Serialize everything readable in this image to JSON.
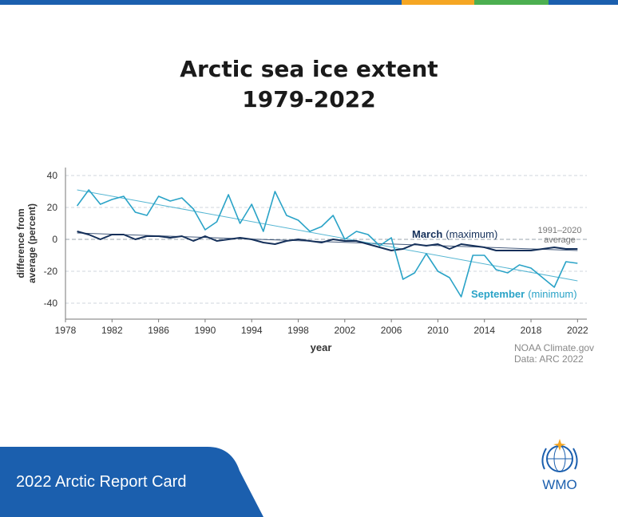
{
  "colors": {
    "top_bar": [
      "#1b5fae",
      "#f5a623",
      "#4caf50",
      "#1b5fae"
    ],
    "september": "#2aa3c7",
    "march": "#15305a",
    "footer": "#1b5fae"
  },
  "title_line1": "Arctic sea ice extent",
  "title_line2": "1979-2022",
  "footer": {
    "label": "2022 Arctic Report Card"
  },
  "logo": {
    "text": "WMO",
    "icon": "wmo-emblem-icon"
  },
  "chart_data": {
    "type": "line",
    "xlabel": "year",
    "ylabel_line1": "difference from",
    "ylabel_line2": "average (percent)",
    "xlim": [
      1978,
      2022.8
    ],
    "ylim": [
      -50,
      45
    ],
    "x_ticks": [
      1978,
      1982,
      1986,
      1990,
      1994,
      1998,
      2002,
      2006,
      2010,
      2014,
      2018,
      2022
    ],
    "y_ticks": [
      40,
      20,
      0,
      -20,
      -40
    ],
    "grid": "horizontal dashed",
    "x": [
      1979,
      1980,
      1981,
      1982,
      1983,
      1984,
      1985,
      1986,
      1987,
      1988,
      1989,
      1990,
      1991,
      1992,
      1993,
      1994,
      1995,
      1996,
      1997,
      1998,
      1999,
      2000,
      2001,
      2002,
      2003,
      2004,
      2005,
      2006,
      2007,
      2008,
      2009,
      2010,
      2011,
      2012,
      2013,
      2014,
      2015,
      2016,
      2017,
      2018,
      2019,
      2020,
      2021,
      2022
    ],
    "series": [
      {
        "name": "March",
        "qualifier": "(maximum)",
        "values": [
          5,
          3,
          0,
          3,
          3,
          0,
          2,
          2,
          1,
          2,
          -1,
          2,
          -1,
          0,
          1,
          0,
          -2,
          -3,
          -1,
          0,
          -1,
          -2,
          0,
          -1,
          -1,
          -3,
          -5,
          -7,
          -6,
          -3,
          -4,
          -3,
          -6,
          -3,
          -4,
          -5,
          -7,
          -7,
          -7,
          -7,
          -6,
          -5,
          -6,
          -6
        ]
      },
      {
        "name": "September",
        "qualifier": "(minimum)",
        "values": [
          21,
          31,
          22,
          25,
          27,
          17,
          15,
          27,
          24,
          26,
          19,
          6,
          11,
          28,
          10,
          22,
          5,
          30,
          15,
          12,
          5,
          8,
          15,
          0,
          5,
          3,
          -4,
          1,
          -25,
          -21,
          -9,
          -20,
          -24,
          -36,
          -10,
          -10,
          -19,
          -21,
          -16,
          -18,
          -24,
          -30,
          -14,
          -15
        ]
      }
    ],
    "trend_lines": [
      {
        "series": "March",
        "from": [
          1979,
          4
        ],
        "to": [
          2022,
          -7
        ]
      },
      {
        "series": "September",
        "from": [
          1979,
          31
        ],
        "to": [
          2022,
          -26
        ]
      }
    ],
    "baseline": {
      "value": 0,
      "label_line1": "1991–2020",
      "label_line2": "average"
    },
    "source_line1": "NOAA Climate.gov",
    "source_line2": "Data: ARC 2022"
  }
}
